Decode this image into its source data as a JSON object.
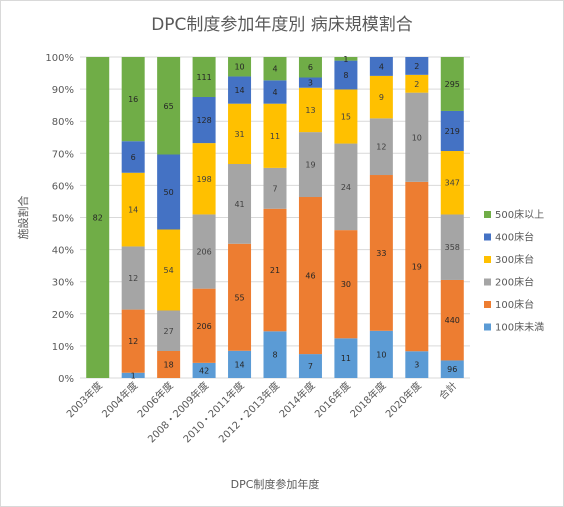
{
  "chart_data": {
    "type": "bar",
    "stacked": "percent",
    "title": "DPC制度参加年度別 病床規模割合",
    "xlabel": "DPC制度参加年度",
    "ylabel": "施設割合",
    "ylim": [
      0,
      100
    ],
    "y_ticks": [
      "0%",
      "10%",
      "20%",
      "30%",
      "40%",
      "50%",
      "60%",
      "70%",
      "80%",
      "90%",
      "100%"
    ],
    "grid": true,
    "legend_position": "right",
    "categories": [
      "2003年度",
      "2004年度",
      "2006年度",
      "2008・2009年度",
      "2010・2011年度",
      "2012・2013年度",
      "2014年度",
      "2016年度",
      "2018年度",
      "2020年度",
      "合計"
    ],
    "series": [
      {
        "name": "100床未満",
        "color": "#5B9BD5",
        "values": [
          0,
          1,
          0,
          42,
          14,
          8,
          7,
          11,
          10,
          3,
          96
        ]
      },
      {
        "name": "100床台",
        "color": "#ED7D31",
        "values": [
          0,
          12,
          18,
          206,
          55,
          21,
          46,
          30,
          33,
          19,
          440
        ]
      },
      {
        "name": "200床台",
        "color": "#A5A5A5",
        "values": [
          0,
          12,
          27,
          206,
          41,
          7,
          19,
          24,
          12,
          10,
          358
        ]
      },
      {
        "name": "300床台",
        "color": "#FFC000",
        "values": [
          0,
          14,
          54,
          198,
          31,
          11,
          13,
          15,
          9,
          2,
          347
        ]
      },
      {
        "name": "400床台",
        "color": "#4472C4",
        "values": [
          0,
          6,
          50,
          128,
          14,
          4,
          3,
          8,
          4,
          2,
          219
        ]
      },
      {
        "name": "500床以上",
        "color": "#70AD47",
        "values": [
          82,
          16,
          65,
          111,
          10,
          4,
          6,
          1,
          0,
          0,
          295
        ]
      }
    ]
  }
}
